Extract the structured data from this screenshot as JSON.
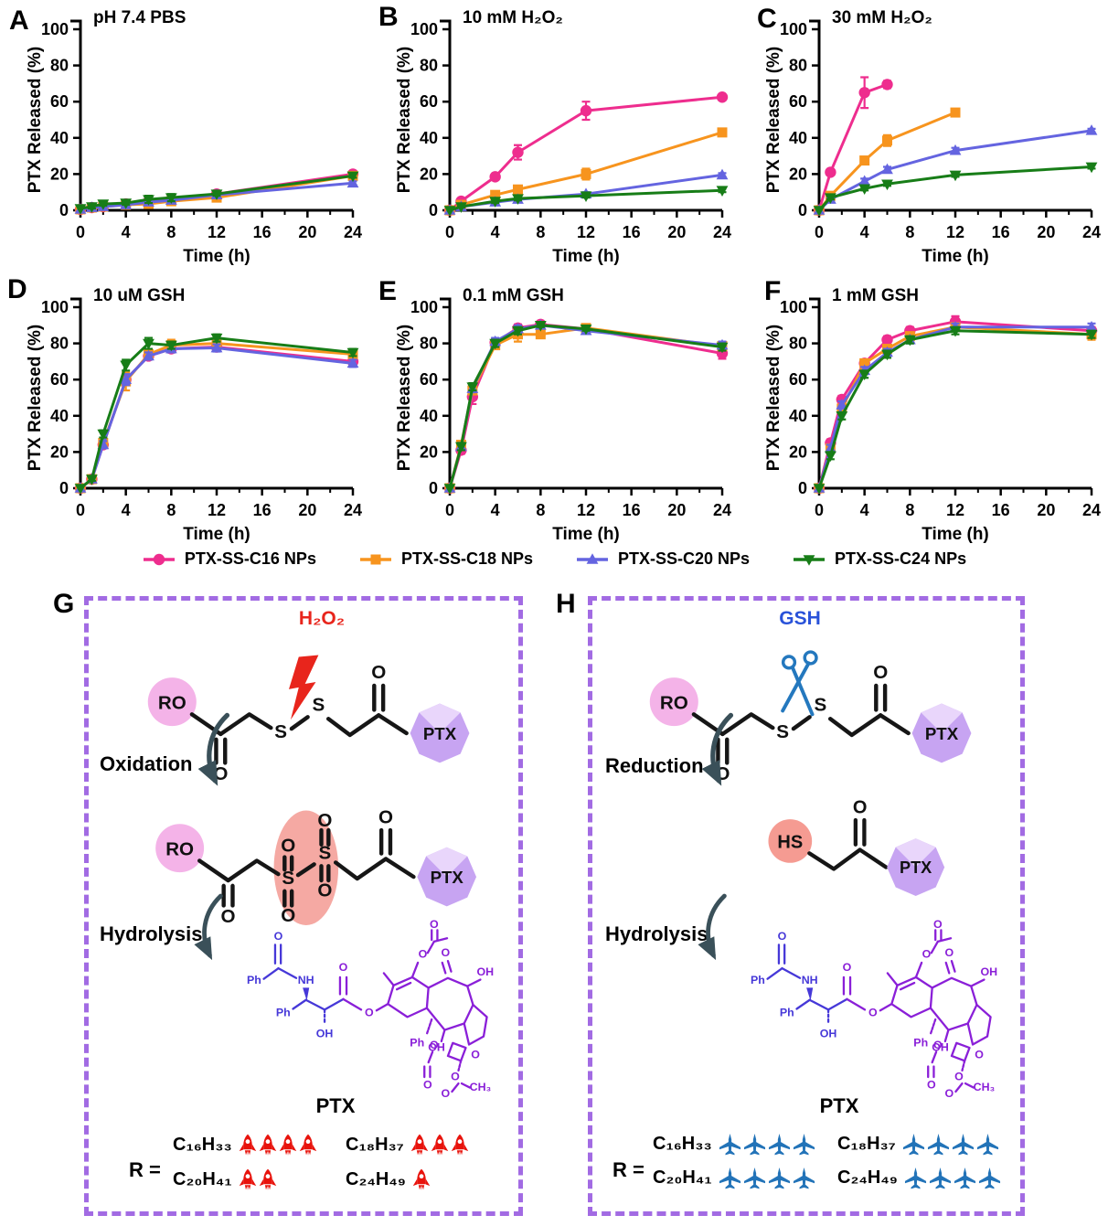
{
  "figure": {
    "panel_letters": [
      "A",
      "B",
      "C",
      "D",
      "E",
      "F",
      "G",
      "H"
    ],
    "legend": [
      {
        "label": "PTX-SS-C16 NPs",
        "color": "#EE2D8E",
        "marker": "circle"
      },
      {
        "label": "PTX-SS-C18 NPs",
        "color": "#F7941E",
        "marker": "square"
      },
      {
        "label": "PTX-SS-C20 NPs",
        "color": "#6464E0",
        "marker": "triangle-up"
      },
      {
        "label": "PTX-SS-C24 NPs",
        "color": "#177D17",
        "marker": "triangle-down"
      }
    ]
  },
  "chart_data": [
    {
      "id": "A",
      "type": "line",
      "title": "pH 7.4 PBS",
      "xlabel": "Time (h)",
      "ylabel": "PTX Released (%)",
      "xlim": [
        0,
        24
      ],
      "ylim": [
        0,
        100
      ],
      "xticks": [
        0,
        4,
        8,
        12,
        16,
        20,
        24
      ],
      "yticks": [
        0,
        20,
        40,
        60,
        80,
        100
      ],
      "x": [
        0,
        1,
        2,
        4,
        6,
        8,
        12,
        24
      ],
      "series": [
        {
          "name": "PTX-SS-C16 NPs",
          "values": [
            0.5,
            1.5,
            2,
            3.5,
            5,
            5.5,
            9,
            20
          ],
          "err": [
            0,
            0,
            1,
            1,
            2,
            1,
            1,
            1
          ]
        },
        {
          "name": "PTX-SS-C18 NPs",
          "values": [
            0.5,
            1.5,
            2,
            3,
            3.5,
            5,
            7,
            19
          ],
          "err": [
            0,
            0,
            0,
            1,
            1,
            1,
            1,
            1
          ]
        },
        {
          "name": "PTX-SS-C20 NPs",
          "values": [
            0.5,
            1.5,
            2,
            3,
            4.5,
            5.5,
            8.5,
            15
          ],
          "err": [
            0,
            0,
            0,
            1,
            1,
            1,
            1,
            1
          ]
        },
        {
          "name": "PTX-SS-C24 NPs",
          "values": [
            1,
            2,
            3.5,
            4,
            6,
            7,
            9,
            19
          ],
          "err": [
            0,
            1,
            1,
            1,
            2,
            2,
            1,
            1
          ]
        }
      ]
    },
    {
      "id": "B",
      "type": "line",
      "title": "10 mM H₂O₂",
      "xlabel": "Time (h)",
      "ylabel": "PTX Released (%)",
      "xlim": [
        0,
        24
      ],
      "ylim": [
        0,
        100
      ],
      "xticks": [
        0,
        4,
        8,
        12,
        16,
        20,
        24
      ],
      "yticks": [
        0,
        20,
        40,
        60,
        80,
        100
      ],
      "x": [
        0,
        1,
        4,
        6,
        12,
        24
      ],
      "series": [
        {
          "name": "PTX-SS-C16 NPs",
          "values": [
            0,
            5,
            18.5,
            32,
            55,
            62.5
          ],
          "err": [
            0,
            1,
            1.5,
            4,
            5,
            1.5
          ]
        },
        {
          "name": "PTX-SS-C18 NPs",
          "values": [
            0,
            3,
            8.5,
            11.5,
            20,
            43
          ],
          "err": [
            0,
            0.5,
            1,
            1.5,
            3,
            1.5
          ]
        },
        {
          "name": "PTX-SS-C20 NPs",
          "values": [
            0,
            2,
            4.5,
            6,
            9,
            19.5
          ],
          "err": [
            0,
            0.5,
            1,
            1,
            1,
            1
          ]
        },
        {
          "name": "PTX-SS-C24 NPs",
          "values": [
            0,
            2,
            5,
            6.5,
            8,
            11
          ],
          "err": [
            0,
            0.5,
            1,
            1,
            1,
            1
          ]
        }
      ]
    },
    {
      "id": "C",
      "type": "line",
      "title": "30 mM H₂O₂",
      "xlabel": "Time (h)",
      "ylabel": "PTX Released (%)",
      "xlim": [
        0,
        24
      ],
      "ylim": [
        0,
        100
      ],
      "xticks": [
        0,
        4,
        8,
        12,
        16,
        20,
        24
      ],
      "yticks": [
        0,
        20,
        40,
        60,
        80,
        100
      ],
      "x": [
        0,
        1,
        4,
        6,
        12,
        24
      ],
      "series": [
        {
          "name": "PTX-SS-C16 NPs",
          "values": [
            0,
            21,
            65,
            69.5,
            null,
            null
          ],
          "err": [
            0,
            1.5,
            8.5,
            2,
            0,
            0
          ]
        },
        {
          "name": "PTX-SS-C18 NPs",
          "values": [
            0,
            8,
            27.5,
            38.5,
            54,
            null
          ],
          "err": [
            0,
            1,
            1.5,
            3,
            1.5,
            0
          ]
        },
        {
          "name": "PTX-SS-C20 NPs",
          "values": [
            0,
            6,
            16,
            22.5,
            33,
            44
          ],
          "err": [
            0,
            1,
            1.5,
            1.5,
            1.5,
            1
          ]
        },
        {
          "name": "PTX-SS-C24 NPs",
          "values": [
            0,
            7,
            12,
            14.5,
            19.5,
            24
          ],
          "err": [
            0,
            1,
            1,
            1,
            1,
            1
          ]
        }
      ]
    },
    {
      "id": "D",
      "type": "line",
      "title": "10 uM GSH",
      "xlabel": "Time (h)",
      "ylabel": "PTX Released (%)",
      "xlim": [
        0,
        24
      ],
      "ylim": [
        0,
        100
      ],
      "xticks": [
        0,
        4,
        8,
        12,
        16,
        20,
        24
      ],
      "yticks": [
        0,
        20,
        40,
        60,
        80,
        100
      ],
      "x": [
        0,
        1,
        2,
        4,
        6,
        8,
        12,
        24
      ],
      "series": [
        {
          "name": "PTX-SS-C16 NPs",
          "values": [
            0,
            5,
            24,
            60,
            73,
            77,
            78,
            70
          ],
          "err": [
            0,
            1,
            2,
            3,
            2,
            2,
            2,
            2
          ]
        },
        {
          "name": "PTX-SS-C18 NPs",
          "values": [
            0,
            5,
            25,
            59,
            74,
            79,
            80,
            74
          ],
          "err": [
            0,
            1,
            2,
            5,
            2,
            3,
            3,
            2
          ]
        },
        {
          "name": "PTX-SS-C20 NPs",
          "values": [
            0,
            5,
            24,
            60,
            73,
            77,
            77.5,
            69
          ],
          "err": [
            0,
            1,
            2,
            3,
            2,
            2,
            2,
            2
          ]
        },
        {
          "name": "PTX-SS-C24 NPs",
          "values": [
            0,
            5,
            30,
            68,
            80,
            79,
            83,
            75
          ],
          "err": [
            0,
            1,
            2,
            3,
            3,
            2,
            2,
            2
          ]
        }
      ]
    },
    {
      "id": "E",
      "type": "line",
      "title": "0.1 mM GSH",
      "xlabel": "Time (h)",
      "ylabel": "PTX Released (%)",
      "xlim": [
        0,
        24
      ],
      "ylim": [
        0,
        100
      ],
      "xticks": [
        0,
        4,
        8,
        12,
        16,
        20,
        24
      ],
      "yticks": [
        0,
        20,
        40,
        60,
        80,
        100
      ],
      "x": [
        0,
        1,
        2,
        4,
        6,
        8,
        12,
        24
      ],
      "series": [
        {
          "name": "PTX-SS-C16 NPs",
          "values": [
            0,
            21,
            50.5,
            80.5,
            88.5,
            90.5,
            88,
            74.5
          ],
          "err": [
            0,
            2,
            4,
            2,
            2,
            1,
            1,
            3
          ]
        },
        {
          "name": "PTX-SS-C18 NPs",
          "values": [
            0,
            24,
            54,
            79,
            85,
            85,
            88.5,
            78.5
          ],
          "err": [
            0,
            2,
            2,
            2,
            4,
            2,
            1,
            2
          ]
        },
        {
          "name": "PTX-SS-C20 NPs",
          "values": [
            0,
            23,
            55,
            81,
            88,
            90,
            87,
            79
          ],
          "err": [
            0,
            2,
            2,
            2,
            2,
            1,
            1,
            2
          ]
        },
        {
          "name": "PTX-SS-C24 NPs",
          "values": [
            0,
            23,
            56,
            80,
            87,
            90,
            88,
            78
          ],
          "err": [
            0,
            2,
            2,
            2,
            2,
            1,
            1,
            2
          ]
        }
      ]
    },
    {
      "id": "F",
      "type": "line",
      "title": "1 mM GSH",
      "xlabel": "Time (h)",
      "ylabel": "PTX Released (%)",
      "xlim": [
        0,
        24
      ],
      "ylim": [
        0,
        100
      ],
      "xticks": [
        0,
        4,
        8,
        12,
        16,
        20,
        24
      ],
      "yticks": [
        0,
        20,
        40,
        60,
        80,
        100
      ],
      "x": [
        0,
        1,
        2,
        4,
        6,
        8,
        12,
        24
      ],
      "series": [
        {
          "name": "PTX-SS-C16 NPs",
          "values": [
            0,
            25,
            49,
            69,
            82,
            87,
            92,
            87
          ],
          "err": [
            0,
            2,
            2,
            2,
            2,
            2,
            3,
            2
          ]
        },
        {
          "name": "PTX-SS-C18 NPs",
          "values": [
            0,
            22,
            44,
            69,
            77,
            84,
            89,
            85
          ],
          "err": [
            0,
            2,
            2,
            2,
            2,
            2,
            2,
            3
          ]
        },
        {
          "name": "PTX-SS-C20 NPs",
          "values": [
            0,
            22,
            46,
            65,
            75,
            82,
            89,
            89
          ],
          "err": [
            0,
            2,
            2,
            2,
            2,
            2,
            2,
            2
          ]
        },
        {
          "name": "PTX-SS-C24 NPs",
          "values": [
            0,
            18,
            40,
            63,
            74,
            82,
            87,
            85
          ],
          "err": [
            0,
            2,
            2,
            2,
            2,
            2,
            2,
            2
          ]
        }
      ]
    }
  ],
  "panel_g": {
    "label": "G",
    "trigger": "H₂O₂",
    "trigger_color": "#E8251C",
    "step1": "Oxidation",
    "step2": "Hydrolysis",
    "product": "PTX",
    "r_label": "R =",
    "icon": "rocket",
    "icon_color": "#E8130C",
    "r_groups": [
      {
        "formula": "C₁₆H₃₃",
        "count": 4
      },
      {
        "formula": "C₁₈H₃₇",
        "count": 3
      },
      {
        "formula": "C₂₀H₄₁",
        "count": 2
      },
      {
        "formula": "C₂₄H₄₉",
        "count": 1
      }
    ]
  },
  "panel_h": {
    "label": "H",
    "trigger": "GSH",
    "trigger_color": "#2952D9",
    "step1": "Reduction",
    "step2": "Hydrolysis",
    "product": "PTX",
    "r_label": "R =",
    "icon": "plane",
    "icon_color": "#2273B8",
    "r_groups": [
      {
        "formula": "C₁₆H₃₃",
        "count": 4
      },
      {
        "formula": "C₁₈H₃₇",
        "count": 4
      },
      {
        "formula": "C₂₀H₄₁",
        "count": 4
      },
      {
        "formula": "C₂₄H₄₉",
        "count": 4
      }
    ]
  },
  "chem": {
    "ro": "RO",
    "ptx": "PTX",
    "hs": "HS",
    "s": "S",
    "o": "O",
    "oh": "OH",
    "nh": "NH",
    "ph": "Ph",
    "ch3": "CH₃"
  }
}
